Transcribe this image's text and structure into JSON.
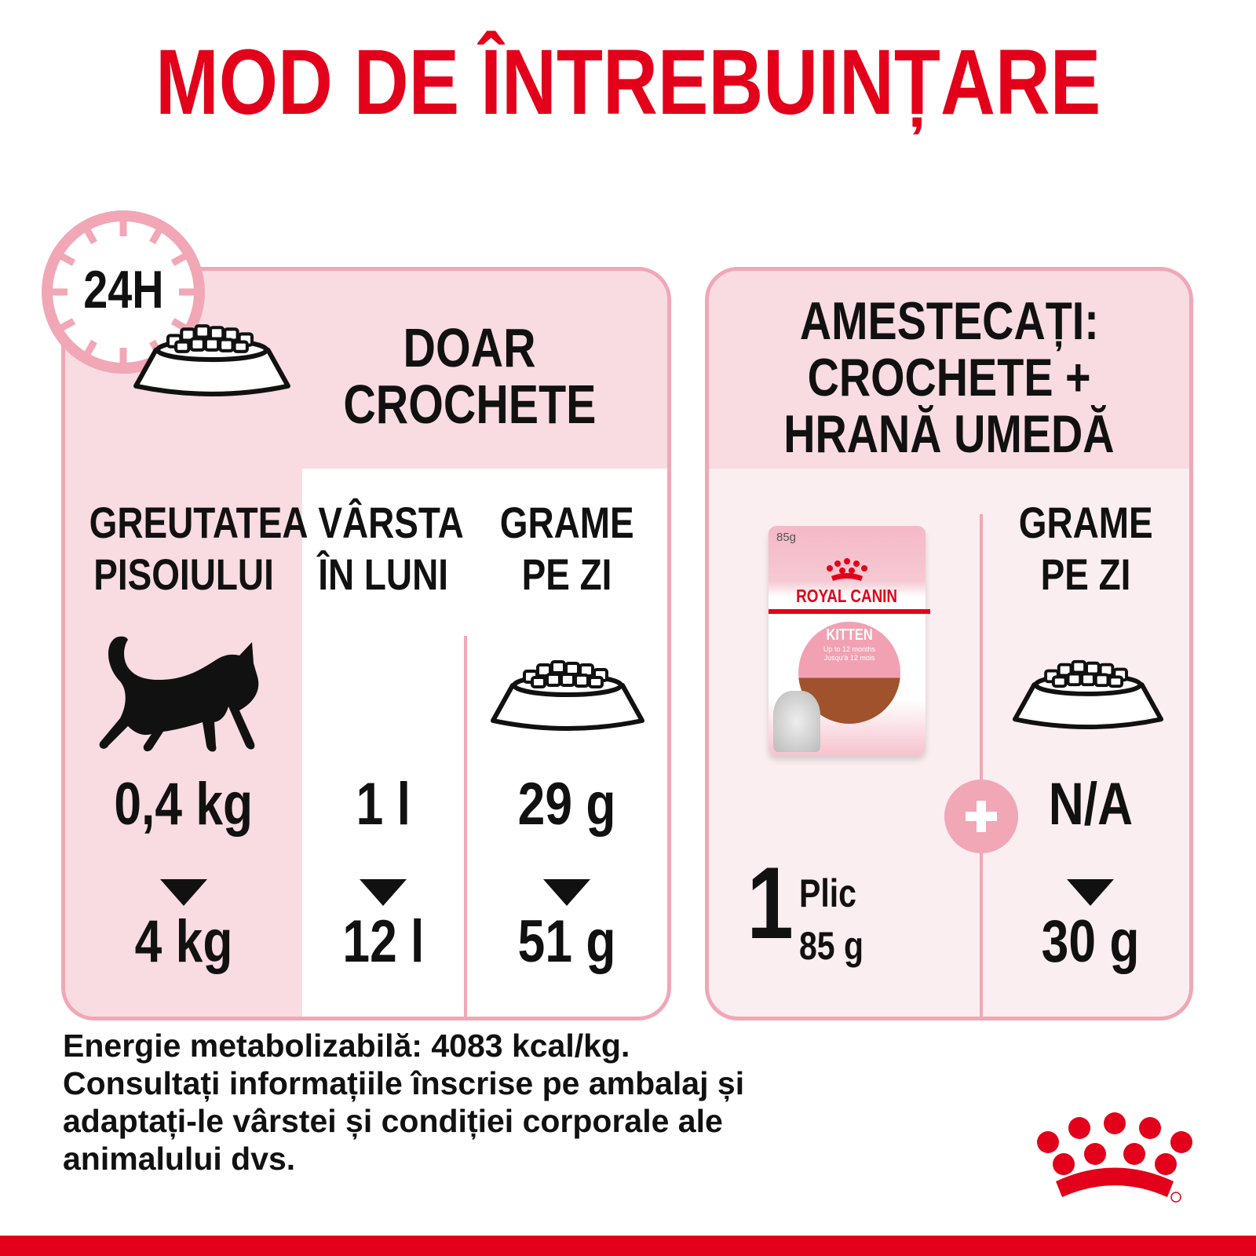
{
  "title": "MOD DE ÎNTREBUINȚARE",
  "colors": {
    "accent": "#e2001a",
    "pink_border": "#f1a7b6",
    "pink_fill": "#f9dbe2",
    "light_fill": "#fbeef1"
  },
  "left_panel": {
    "badge": "24H",
    "heading": [
      "DOAR",
      "CROCHETE"
    ],
    "columns": [
      {
        "header": [
          "GREUTATEA",
          "PISOIULUI"
        ],
        "from": "0,4 kg",
        "to": "4 kg",
        "icon": "kitten-icon"
      },
      {
        "header": [
          "VÂRSTA",
          "ÎN LUNI"
        ],
        "from": "1 l",
        "to": "12 l"
      },
      {
        "header": [
          "GRAME",
          "PE ZI"
        ],
        "from": "29 g",
        "to": "51 g",
        "icon": "food-bowl-icon"
      }
    ]
  },
  "right_panel": {
    "heading": [
      "AMESTECAȚI:",
      "CROCHETE +",
      "HRANĂ UMEDĂ"
    ],
    "pouch": {
      "weight": "85g",
      "brand": "ROYAL CANIN",
      "variant": "KITTEN",
      "sub": [
        "Up to 12 months",
        "Jusqu'à 12 mois"
      ]
    },
    "wet": {
      "count": "1",
      "unit": "Plic",
      "grams": "85 g"
    },
    "dry": {
      "header": [
        "GRAME",
        "PE ZI"
      ],
      "from": "N/A",
      "to": "30 g"
    }
  },
  "footer": [
    "Energie metabolizabilă: 4083 kcal/kg.",
    "Consultați informațiile înscrise pe ambalaj și",
    "adaptați-le vârstei și condiției corporale ale",
    "animalului dvs."
  ],
  "logo": "ROYAL CANIN"
}
